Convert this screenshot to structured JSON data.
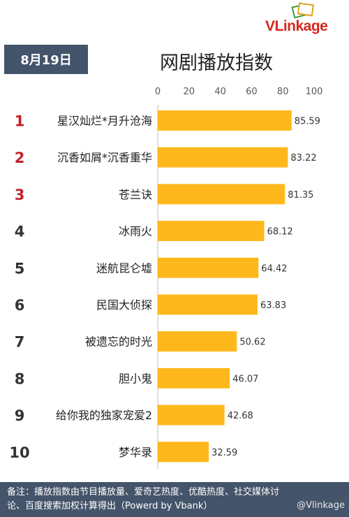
{
  "header": {
    "date": "8月19日",
    "brand": "VLinkage"
  },
  "chart_data": {
    "type": "bar",
    "orientation": "horizontal",
    "title": "网剧播放指数",
    "xlim": [
      0,
      100
    ],
    "ticks": [
      "0",
      "20",
      "40",
      "60",
      "80",
      "100"
    ],
    "ranks": [
      "1",
      "2",
      "3",
      "4",
      "5",
      "6",
      "7",
      "8",
      "9",
      "10"
    ],
    "categories": [
      "星汉灿烂*月升沧海",
      "沉香如屑*沉香重华",
      "苍兰诀",
      "冰雨火",
      "迷航昆仑墟",
      "民国大侦探",
      "被遗忘的时光",
      "胆小鬼",
      "给你我的独家宠爱2",
      "梦华录"
    ],
    "values": [
      85.59,
      83.22,
      81.35,
      68.12,
      64.42,
      63.83,
      50.62,
      46.07,
      42.68,
      32.59
    ],
    "value_labels": [
      "85.59",
      "83.22",
      "81.35",
      "68.12",
      "64.42",
      "63.83",
      "50.62",
      "46.07",
      "42.68",
      "32.59"
    ],
    "bar_color": "#ffb81c",
    "top_rank_color": "#c0212b",
    "rank_color": "#333333",
    "grid": false,
    "legend": "none"
  },
  "footer": {
    "line1": "备注：播放指数由节目播放量、爱奇艺热度、优酷热度、社交媒体讨",
    "line2": "论、百度搜索加权计算得出（Powerd by Vbank）",
    "watermark": "@Vlinkage"
  }
}
